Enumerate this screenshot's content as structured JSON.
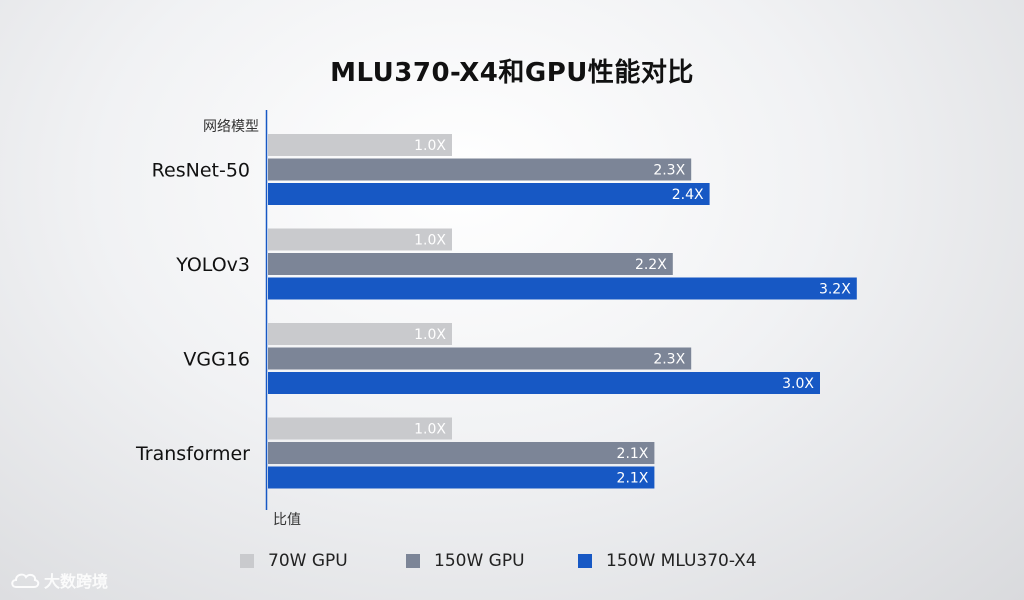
{
  "title": "MLU370-X4和GPU性能对比",
  "chart_data": {
    "type": "bar",
    "orientation": "horizontal",
    "title": "MLU370-X4和GPU性能对比",
    "ylabel": "网络模型",
    "xlabel": "比值",
    "categories": [
      "ResNet-50",
      "YOLOv3",
      "VGG16",
      "Transformer"
    ],
    "series": [
      {
        "name": "70W GPU",
        "color": "#c9cacd",
        "values": [
          1.0,
          1.0,
          1.0,
          1.0
        ],
        "labels": [
          "1.0X",
          "1.0X",
          "1.0X",
          "1.0X"
        ]
      },
      {
        "name": "150W GPU",
        "color": "#7c8597",
        "values": [
          2.3,
          2.2,
          2.3,
          2.1
        ],
        "labels": [
          "2.3X",
          "2.2X",
          "2.3X",
          "2.1X"
        ]
      },
      {
        "name": "150W MLU370-X4",
        "color": "#1758c4",
        "values": [
          2.4,
          3.2,
          3.0,
          2.1
        ],
        "labels": [
          "2.4X",
          "3.2X",
          "3.0X",
          "2.1X"
        ]
      }
    ],
    "xlim": [
      0,
      4.2
    ],
    "grid": false,
    "legend": "bottom"
  },
  "watermark": {
    "text": "大数跨境",
    "icon": "cloud-logo-icon"
  }
}
